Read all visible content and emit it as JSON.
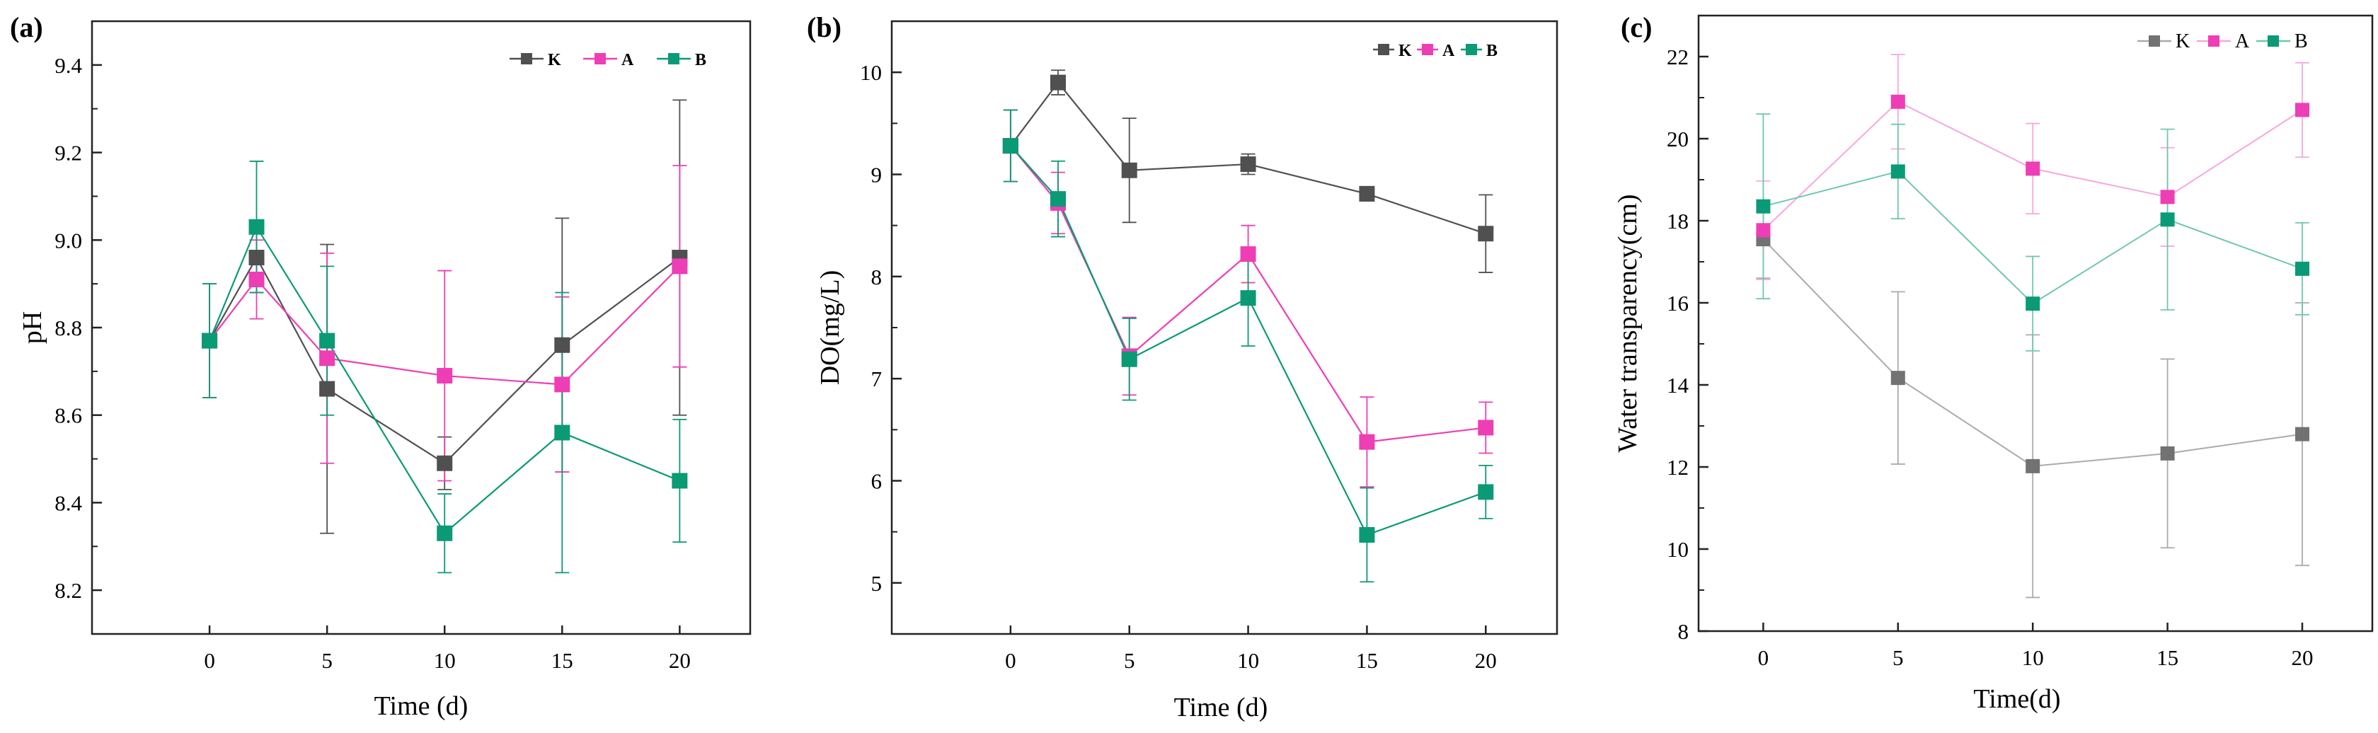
{
  "chart_data": [
    {
      "type": "line",
      "panel": "(a)",
      "xlabel": "Time (d)",
      "ylabel": "pH",
      "xlim": [
        -5,
        23
      ],
      "ylim": [
        8.1,
        9.5
      ],
      "xticks": [
        0,
        5,
        10,
        15,
        20
      ],
      "yticks": [
        8.2,
        8.4,
        8.6,
        8.8,
        9.0,
        9.2,
        9.4
      ],
      "ytick_decimals": 1,
      "legend_position": "top-right",
      "series": [
        {
          "name": "K",
          "color": "#505050",
          "line_color": "#505050",
          "x": [
            0,
            2,
            5,
            10,
            15,
            20
          ],
          "values": [
            8.77,
            8.96,
            8.66,
            8.49,
            8.76,
            8.96
          ],
          "errors": [
            0.13,
            0.08,
            0.33,
            0.06,
            0.29,
            0.36
          ]
        },
        {
          "name": "A",
          "color": "#ee3eb5",
          "line_color": "#ee3eb5",
          "x": [
            0,
            2,
            5,
            10,
            15,
            20
          ],
          "values": [
            8.77,
            8.91,
            8.73,
            8.69,
            8.67,
            8.94
          ],
          "errors": [
            0.13,
            0.09,
            0.24,
            0.24,
            0.2,
            0.23
          ]
        },
        {
          "name": "B",
          "color": "#0b9a76",
          "line_color": "#0b9a76",
          "x": [
            0,
            2,
            5,
            10,
            15,
            20
          ],
          "values": [
            8.77,
            9.03,
            8.77,
            8.33,
            8.56,
            8.45
          ],
          "errors": [
            0.13,
            0.15,
            0.17,
            0.09,
            0.32,
            0.14
          ]
        }
      ]
    },
    {
      "type": "line",
      "panel": "(b)",
      "xlabel": "Time (d)",
      "ylabel": "DO(mg/L)",
      "xlim": [
        -5,
        23
      ],
      "ylim": [
        4.5,
        10.5
      ],
      "xticks": [
        0,
        5,
        10,
        15,
        20
      ],
      "yticks": [
        5,
        6,
        7,
        8,
        9,
        10
      ],
      "ytick_decimals": 0,
      "legend_position": "top-right",
      "series": [
        {
          "name": "K",
          "color": "#505050",
          "line_color": "#505050",
          "x": [
            0,
            2,
            5,
            10,
            15,
            20
          ],
          "values": [
            9.28,
            9.9,
            9.04,
            9.1,
            8.81,
            8.42
          ],
          "errors": [
            0.35,
            0.12,
            0.51,
            0.1,
            0.07,
            0.38
          ]
        },
        {
          "name": "A",
          "color": "#ee3eb5",
          "line_color": "#ee3eb5",
          "x": [
            0,
            2,
            5,
            10,
            15,
            20
          ],
          "values": [
            9.28,
            8.72,
            7.22,
            8.22,
            6.38,
            6.52
          ],
          "errors": [
            0.35,
            0.3,
            0.38,
            0.28,
            0.44,
            0.25
          ]
        },
        {
          "name": "B",
          "color": "#0b9a76",
          "line_color": "#0b9a76",
          "x": [
            0,
            2,
            5,
            10,
            15,
            20
          ],
          "values": [
            9.28,
            8.76,
            7.19,
            7.79,
            5.47,
            5.89
          ],
          "errors": [
            0.35,
            0.37,
            0.4,
            0.47,
            0.46,
            0.26
          ]
        }
      ]
    },
    {
      "type": "line",
      "panel": "(c)",
      "xlabel": "Time(d)",
      "ylabel": "Water transparency(cm)",
      "xlim": [
        -2.4,
        22.6
      ],
      "ylim": [
        8,
        23
      ],
      "xticks": [
        0,
        5,
        10,
        15,
        20
      ],
      "yticks": [
        8,
        10,
        12,
        14,
        16,
        18,
        20,
        22
      ],
      "ytick_decimals": 0,
      "legend_position": "top-right",
      "series": [
        {
          "name": "K",
          "color": "#727272",
          "line_color": "#ababab",
          "x": [
            0,
            5,
            10,
            15,
            20
          ],
          "values": [
            17.55,
            14.17,
            12.02,
            12.33,
            12.8
          ],
          "errors": [
            0.95,
            2.1,
            3.2,
            2.3,
            3.2
          ]
        },
        {
          "name": "A",
          "color": "#ee3eb5",
          "line_color": "#f7a8dc",
          "x": [
            0,
            5,
            10,
            15,
            20
          ],
          "values": [
            17.77,
            20.9,
            19.27,
            18.58,
            20.7
          ],
          "errors": [
            1.2,
            1.15,
            1.1,
            1.2,
            1.15
          ]
        },
        {
          "name": "B",
          "color": "#0b9a76",
          "line_color": "#6fc8ae",
          "x": [
            0,
            5,
            10,
            15,
            20
          ],
          "values": [
            18.35,
            19.2,
            15.98,
            18.03,
            16.83
          ],
          "errors": [
            2.25,
            1.15,
            1.15,
            2.2,
            1.12
          ]
        }
      ]
    }
  ]
}
